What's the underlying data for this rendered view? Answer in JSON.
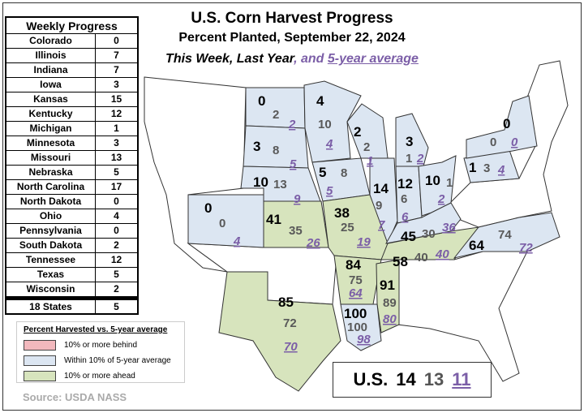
{
  "title": "U.S. Corn Harvest Progress",
  "subtitle": "Percent Planted, September 22, 2024",
  "legend_line": {
    "this_week": "This Week",
    "sep1": ", ",
    "last_year": "Last Year",
    "sep2": ", and ",
    "five_year": "5-year average"
  },
  "table": {
    "header": "Weekly Progress",
    "rows": [
      {
        "state": "Colorado",
        "value": "0"
      },
      {
        "state": "Illinois",
        "value": "7"
      },
      {
        "state": "Indiana",
        "value": "7"
      },
      {
        "state": "Iowa",
        "value": "3"
      },
      {
        "state": "Kansas",
        "value": "15"
      },
      {
        "state": "Kentucky",
        "value": "12"
      },
      {
        "state": "Michigan",
        "value": "1"
      },
      {
        "state": "Minnesota",
        "value": "3"
      },
      {
        "state": "Missouri",
        "value": "13"
      },
      {
        "state": "Nebraska",
        "value": "5"
      },
      {
        "state": "North Carolina",
        "value": "17"
      },
      {
        "state": "North Dakota",
        "value": "0"
      },
      {
        "state": "Ohio",
        "value": "4"
      },
      {
        "state": "Pennsylvania",
        "value": "0"
      },
      {
        "state": "South Dakota",
        "value": "2"
      },
      {
        "state": "Tennessee",
        "value": "12"
      },
      {
        "state": "Texas",
        "value": "5"
      },
      {
        "state": "Wisconsin",
        "value": "2"
      }
    ],
    "total": {
      "state": "18 States",
      "value": "5"
    }
  },
  "legend": {
    "title": "Percent Harvested vs. 5-year average",
    "items": [
      {
        "label": "10% or more behind",
        "color": "#f2b8bd"
      },
      {
        "label": "Within 10% of 5-year average",
        "color": "#dce6f2"
      },
      {
        "label": "10% or more ahead",
        "color": "#d7e4bd"
      }
    ]
  },
  "source": "Source: USDA NASS",
  "us": {
    "label": "U.S.",
    "this_week": "14",
    "last_year": "13",
    "five_year": "11"
  },
  "colors": {
    "this_week": "#000000",
    "last_year": "#595959",
    "five_year": "#7b5ea7"
  },
  "states": [
    {
      "name": "ND",
      "cat": "within",
      "tw": "0",
      "ly": "2",
      "avg": "2"
    },
    {
      "name": "SD",
      "cat": "within",
      "tw": "3",
      "ly": "8",
      "avg": "5"
    },
    {
      "name": "NE",
      "cat": "within",
      "tw": "10",
      "ly": "13",
      "avg": "9"
    },
    {
      "name": "CO",
      "cat": "within",
      "tw": "0",
      "ly": "0",
      "avg": "4"
    },
    {
      "name": "KS",
      "cat": "ahead",
      "tw": "41",
      "ly": "35",
      "avg": "26"
    },
    {
      "name": "MN",
      "cat": "within",
      "tw": "4",
      "ly": "10",
      "avg": "4"
    },
    {
      "name": "IA",
      "cat": "within",
      "tw": "5",
      "ly": "8",
      "avg": "5"
    },
    {
      "name": "MO",
      "cat": "ahead",
      "tw": "38",
      "ly": "25",
      "avg": "19"
    },
    {
      "name": "WI",
      "cat": "within",
      "tw": "2",
      "ly": "2",
      "avg": "1"
    },
    {
      "name": "IL",
      "cat": "within",
      "tw": "14",
      "ly": "9",
      "avg": "7"
    },
    {
      "name": "MI",
      "cat": "within",
      "tw": "3",
      "ly": "1",
      "avg": "2"
    },
    {
      "name": "IN",
      "cat": "within",
      "tw": "12",
      "ly": "6",
      "avg": "6"
    },
    {
      "name": "OH",
      "cat": "within",
      "tw": "10",
      "ly": "1",
      "avg": "2"
    },
    {
      "name": "KY",
      "cat": "within",
      "tw": "45",
      "ly": "30",
      "avg": "36"
    },
    {
      "name": "TN",
      "cat": "ahead",
      "tw": "58",
      "ly": "40",
      "avg": "40"
    },
    {
      "name": "NC",
      "cat": "within",
      "tw": "64",
      "ly": "74",
      "avg": "72"
    },
    {
      "name": "PA",
      "cat": "within",
      "tw": "1",
      "ly": "3",
      "avg": "4"
    },
    {
      "name": "NY",
      "cat": "within",
      "tw": "0",
      "ly": "0",
      "avg": "0"
    },
    {
      "name": "AR",
      "cat": "ahead",
      "tw": "84",
      "ly": "75",
      "avg": "64"
    },
    {
      "name": "MS",
      "cat": "ahead",
      "tw": "91",
      "ly": "89",
      "avg": "80"
    },
    {
      "name": "LA",
      "cat": "within",
      "tw": "100",
      "ly": "100",
      "avg": "98"
    },
    {
      "name": "TX",
      "cat": "ahead",
      "tw": "85",
      "ly": "72",
      "avg": "70"
    }
  ]
}
